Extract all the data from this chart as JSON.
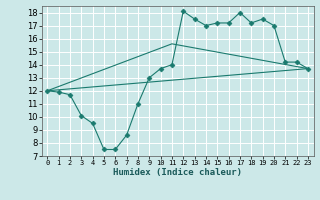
{
  "xlabel": "Humidex (Indice chaleur)",
  "background_color": "#cce8e8",
  "grid_color": "#ffffff",
  "line_color": "#1a7a6e",
  "xlim": [
    -0.5,
    23.5
  ],
  "ylim": [
    7,
    18.5
  ],
  "xticks": [
    0,
    1,
    2,
    3,
    4,
    5,
    6,
    7,
    8,
    9,
    10,
    11,
    12,
    13,
    14,
    15,
    16,
    17,
    18,
    19,
    20,
    21,
    22,
    23
  ],
  "yticks": [
    7,
    8,
    9,
    10,
    11,
    12,
    13,
    14,
    15,
    16,
    17,
    18
  ],
  "series1_x": [
    0,
    1,
    2,
    3,
    4,
    5,
    6,
    7,
    8,
    9,
    10,
    11,
    12,
    13,
    14,
    15,
    16,
    17,
    18,
    19,
    20,
    21,
    22,
    23
  ],
  "series1_y": [
    12.0,
    11.9,
    11.7,
    10.1,
    9.5,
    7.5,
    7.5,
    8.6,
    11.0,
    13.0,
    13.7,
    14.0,
    18.1,
    17.5,
    17.0,
    17.2,
    17.2,
    18.0,
    17.2,
    17.5,
    17.0,
    14.2,
    14.2,
    13.7
  ],
  "series2_x": [
    0,
    23
  ],
  "series2_y": [
    12.0,
    13.7
  ],
  "series3_x": [
    0,
    11,
    23
  ],
  "series3_y": [
    12.0,
    15.6,
    13.7
  ]
}
